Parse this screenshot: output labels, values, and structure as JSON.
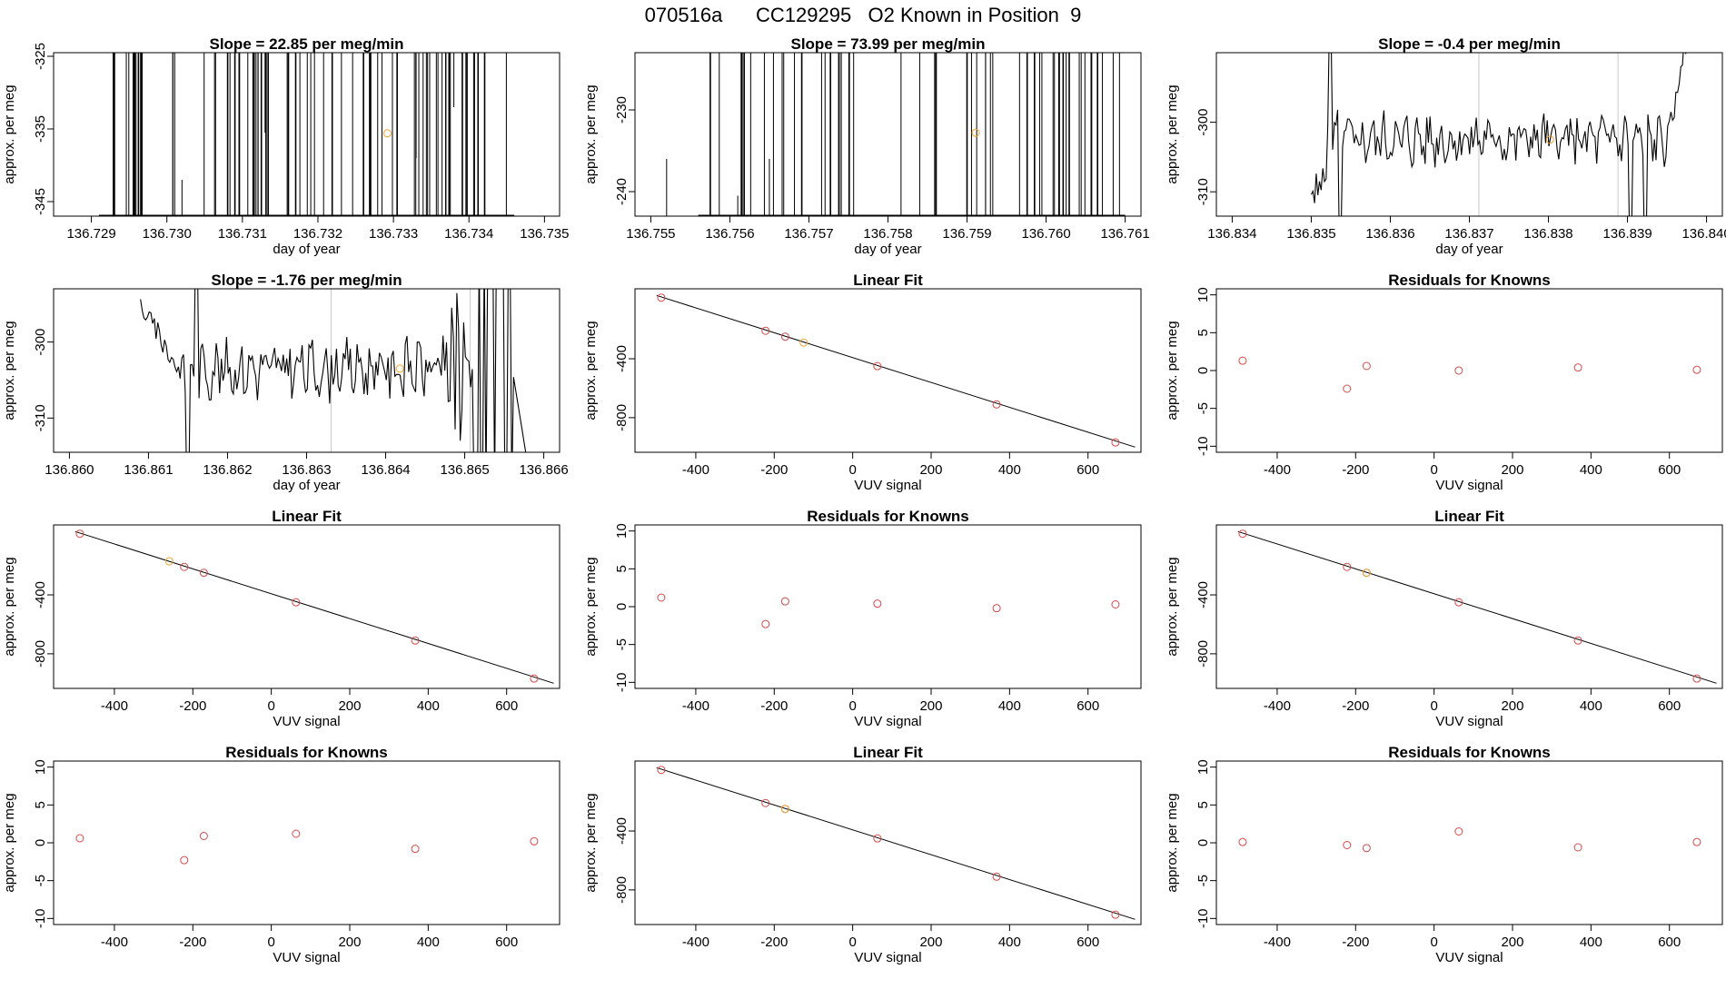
{
  "figure": {
    "title": "070516a      CC129295   O2 Known in Position  9"
  },
  "colors": {
    "line": "#000000",
    "known": "#d94848",
    "current": "#f2a533",
    "gridline": "#c8c8c8"
  },
  "chart_data": [
    {
      "type": "line",
      "title": "Slope =  22.85  per meg/min",
      "xlabel": "day of year",
      "ylabel": "approx. per meg",
      "xlim": [
        136.7285,
        136.7352
      ],
      "ylim": [
        -347,
        -324.5
      ],
      "xticks": [
        "136.729",
        "136.730",
        "136.731",
        "136.732",
        "136.733",
        "136.734",
        "136.735"
      ],
      "yticks": [
        "-325",
        "-335",
        "-345"
      ],
      "style": "spikes",
      "seed": 11,
      "spikes": 75,
      "spike_range": [
        136.7291,
        136.7346
      ],
      "partial": [
        [
          136.7302,
          -342,
          -347
        ],
        [
          136.7338,
          -324.5,
          -332
        ],
        [
          136.7313,
          -324.5,
          -335.5
        ],
        [
          136.7333,
          -324.5,
          -339
        ]
      ],
      "gridlines": [],
      "marker": [
        136.73292,
        -335.6
      ]
    },
    {
      "type": "line",
      "title": "Slope =  73.99  per meg/min",
      "xlabel": "day of year",
      "ylabel": "approx. per meg",
      "xlim": [
        136.7548,
        136.7612
      ],
      "ylim": [
        -243,
        -223
      ],
      "xticks": [
        "136.755",
        "136.756",
        "136.757",
        "136.758",
        "136.759",
        "136.760",
        "136.761"
      ],
      "yticks": [
        "-230",
        "-240"
      ],
      "style": "spikes",
      "seed": 23,
      "spikes": 55,
      "spike_range": [
        136.7556,
        136.761
      ],
      "partial": [
        [
          136.7552,
          -236,
          -243
        ],
        [
          136.7561,
          -240.5,
          -243
        ],
        [
          136.7565,
          -236,
          -243
        ]
      ],
      "gridlines": [],
      "marker": [
        136.75911,
        -232.8
      ]
    },
    {
      "type": "line",
      "title": "Slope =  -0.4  per meg/min",
      "xlabel": "day of year",
      "ylabel": "approx. per meg",
      "xlim": [
        136.8338,
        136.8402
      ],
      "ylim": [
        -313.5,
        -290
      ],
      "xticks": [
        "136.834",
        "136.835",
        "136.836",
        "136.837",
        "136.838",
        "136.839",
        "136.840"
      ],
      "yticks": [
        "-300",
        "-310"
      ],
      "style": "noise",
      "seed": 5,
      "start": 136.835,
      "end": 136.8398,
      "base": -302.5,
      "gridlines": [
        136.83712,
        136.83888
      ],
      "marker": [
        136.83802,
        -302.5
      ]
    },
    {
      "type": "line",
      "title": "Slope =  -1.76  per meg/min",
      "xlabel": "day of year",
      "ylabel": "approx. per meg",
      "xlim": [
        136.8598,
        136.8662
      ],
      "ylim": [
        -314.5,
        -293
      ],
      "xticks": [
        "136.860",
        "136.861",
        "136.862",
        "136.863",
        "136.864",
        "136.865",
        "136.866"
      ],
      "yticks": [
        "-300",
        "-310"
      ],
      "style": "noise2",
      "seed": 9,
      "start": 136.8609,
      "end": 136.8659,
      "base": -303.5,
      "gridlines": [
        136.86331,
        136.86507
      ],
      "marker": [
        136.86418,
        -303.5
      ]
    },
    {
      "type": "scatter",
      "title": "Linear Fit",
      "xlabel": "VUV signal",
      "ylabel": "approx. per meg",
      "xlim": [
        -555,
        735
      ],
      "ylim": [
        -1035,
        75
      ],
      "xticks": [
        -400,
        -200,
        0,
        200,
        400,
        600
      ],
      "yticks": [
        -400,
        -800
      ],
      "fit_line": {
        "x": [
          -500,
          720
        ],
        "y": [
          30,
          -1000
        ]
      },
      "knowns": {
        "x": [
          -488,
          -222,
          -172,
          63,
          367,
          670
        ],
        "y": [
          15,
          -210,
          -250,
          -450,
          -710,
          -968
        ]
      },
      "current": {
        "x": [
          -125
        ],
        "y": [
          -290
        ]
      }
    },
    {
      "type": "scatter",
      "title": "Residuals for Knowns",
      "xlabel": "VUV signal",
      "ylabel": "approx. per meg",
      "xlim": [
        -555,
        735
      ],
      "ylim": [
        -10.8,
        10.8
      ],
      "xticks": [
        -400,
        -200,
        0,
        200,
        400,
        600
      ],
      "yticks": [
        10,
        5,
        0,
        -5,
        -10
      ],
      "knowns": {
        "x": [
          -488,
          -222,
          -172,
          63,
          367,
          670
        ],
        "y": [
          1.3,
          -2.4,
          0.6,
          0.0,
          0.4,
          0.1
        ]
      }
    },
    {
      "type": "scatter",
      "title": "Linear Fit",
      "xlabel": "VUV signal",
      "ylabel": "approx. per meg",
      "xlim": [
        -555,
        735
      ],
      "ylim": [
        -1035,
        75
      ],
      "xticks": [
        -400,
        -200,
        0,
        200,
        400,
        600
      ],
      "yticks": [
        -400,
        -800
      ],
      "fit_line": {
        "x": [
          -500,
          720
        ],
        "y": [
          30,
          -1000
        ]
      },
      "knowns": {
        "x": [
          -488,
          -222,
          -172,
          63,
          367,
          670
        ],
        "y": [
          15,
          -210,
          -250,
          -450,
          -710,
          -968
        ]
      },
      "current": {
        "x": [
          -260
        ],
        "y": [
          -172
        ]
      }
    },
    {
      "type": "scatter",
      "title": "Residuals for Knowns",
      "xlabel": "VUV signal",
      "ylabel": "approx. per meg",
      "xlim": [
        -555,
        735
      ],
      "ylim": [
        -10.8,
        10.8
      ],
      "xticks": [
        -400,
        -200,
        0,
        200,
        400,
        600
      ],
      "yticks": [
        10,
        5,
        0,
        -5,
        -10
      ],
      "knowns": {
        "x": [
          -488,
          -222,
          -172,
          63,
          367,
          670
        ],
        "y": [
          1.2,
          -2.3,
          0.7,
          0.4,
          -0.2,
          0.3
        ]
      }
    },
    {
      "type": "scatter",
      "title": "Linear Fit",
      "xlabel": "VUV signal",
      "ylabel": "approx. per meg",
      "xlim": [
        -555,
        735
      ],
      "ylim": [
        -1035,
        75
      ],
      "xticks": [
        -400,
        -200,
        0,
        200,
        400,
        600
      ],
      "yticks": [
        -400,
        -800
      ],
      "fit_line": {
        "x": [
          -500,
          720
        ],
        "y": [
          30,
          -1000
        ]
      },
      "knowns": {
        "x": [
          -488,
          -222,
          -172,
          63,
          367,
          670
        ],
        "y": [
          15,
          -210,
          -250,
          -450,
          -710,
          -968
        ]
      },
      "current": {
        "x": [
          -172
        ],
        "y": [
          -250
        ]
      }
    },
    {
      "type": "scatter",
      "title": "Residuals for Knowns",
      "xlabel": "VUV signal",
      "ylabel": "approx. per meg",
      "xlim": [
        -555,
        735
      ],
      "ylim": [
        -10.8,
        10.8
      ],
      "xticks": [
        -400,
        -200,
        0,
        200,
        400,
        600
      ],
      "yticks": [
        10,
        5,
        0,
        -5,
        -10
      ],
      "knowns": {
        "x": [
          -488,
          -222,
          -172,
          63,
          367,
          670
        ],
        "y": [
          0.6,
          -2.3,
          0.9,
          1.2,
          -0.8,
          0.2
        ]
      }
    },
    {
      "type": "scatter",
      "title": "Linear Fit",
      "xlabel": "VUV signal",
      "ylabel": "approx. per meg",
      "xlim": [
        -555,
        735
      ],
      "ylim": [
        -1035,
        75
      ],
      "xticks": [
        -400,
        -200,
        0,
        200,
        400,
        600
      ],
      "yticks": [
        -400,
        -800
      ],
      "fit_line": {
        "x": [
          -500,
          720
        ],
        "y": [
          30,
          -1000
        ]
      },
      "knowns": {
        "x": [
          -488,
          -222,
          -172,
          63,
          367,
          670
        ],
        "y": [
          15,
          -210,
          -250,
          -450,
          -710,
          -968
        ]
      },
      "current": {
        "x": [
          -172
        ],
        "y": [
          -250
        ]
      }
    },
    {
      "type": "scatter",
      "title": "Residuals for Knowns",
      "xlabel": "VUV signal",
      "ylabel": "approx. per meg",
      "xlim": [
        -555,
        735
      ],
      "ylim": [
        -10.8,
        10.8
      ],
      "xticks": [
        -400,
        -200,
        0,
        200,
        400,
        600
      ],
      "yticks": [
        10,
        5,
        0,
        -5,
        -10
      ],
      "knowns": {
        "x": [
          -488,
          -222,
          -172,
          63,
          367,
          670
        ],
        "y": [
          0.1,
          -0.3,
          -0.7,
          1.5,
          -0.6,
          0.1
        ]
      }
    }
  ]
}
